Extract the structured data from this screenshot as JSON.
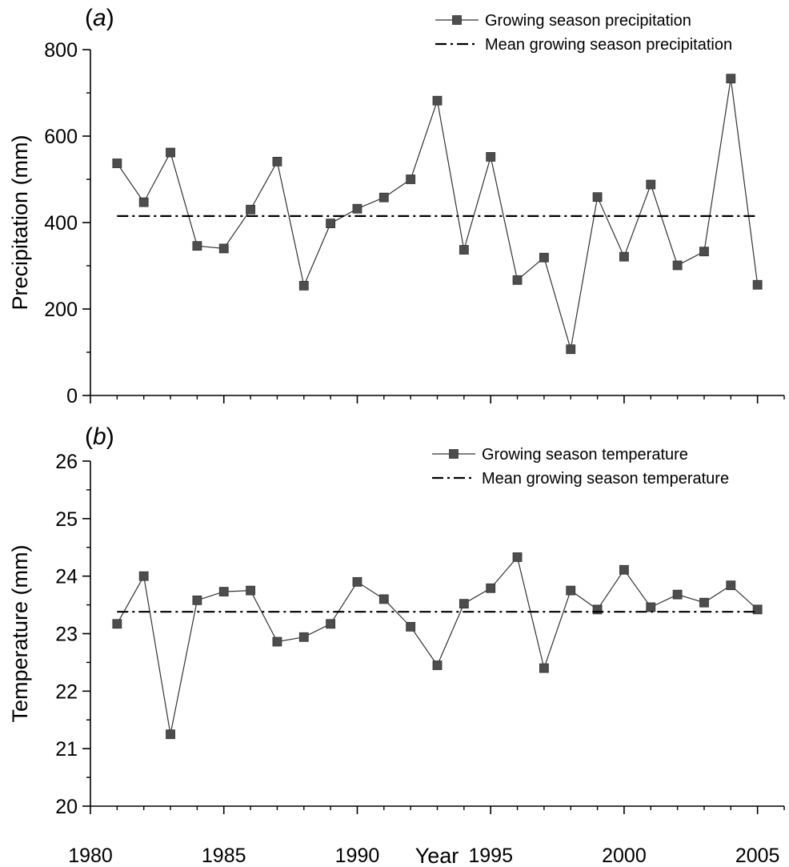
{
  "figure": {
    "xlabel": "Year"
  },
  "chart_data": [
    {
      "type": "line",
      "panel_label": "a",
      "xlabel": "",
      "ylabel": "Precipitation (mm)",
      "xlim": [
        1980,
        2006
      ],
      "ylim": [
        0,
        800
      ],
      "xticks": [
        1980,
        1985,
        1990,
        1995,
        2000,
        2005
      ],
      "yticks": [
        0,
        200,
        400,
        600,
        800
      ],
      "grid": false,
      "legend": "top-right",
      "series": [
        {
          "name": "Growing season precipitation",
          "style": "line-square-markers",
          "color": "#4d4d4d",
          "x": [
            1981,
            1982,
            1983,
            1984,
            1985,
            1986,
            1987,
            1988,
            1989,
            1990,
            1991,
            1992,
            1993,
            1994,
            1995,
            1996,
            1997,
            1998,
            1999,
            2000,
            2001,
            2002,
            2003,
            2004,
            2005
          ],
          "y": [
            537,
            447,
            562,
            346,
            340,
            430,
            541,
            254,
            398,
            432,
            458,
            500,
            682,
            337,
            552,
            267,
            319,
            107,
            459,
            321,
            488,
            301,
            333,
            733,
            256
          ]
        },
        {
          "name": "Mean growing season precipitation",
          "style": "dash-dot",
          "color": "#000000",
          "x": [
            1981,
            2005
          ],
          "y": [
            415,
            415
          ]
        }
      ]
    },
    {
      "type": "line",
      "panel_label": "b",
      "xlabel": "Year",
      "ylabel": "Temperature (mm)",
      "xlim": [
        1980,
        2006
      ],
      "ylim": [
        20,
        26
      ],
      "xticks": [
        1980,
        1985,
        1990,
        1995,
        2000,
        2005
      ],
      "yticks": [
        20,
        21,
        22,
        23,
        24,
        25,
        26
      ],
      "grid": false,
      "legend": "top-right",
      "series": [
        {
          "name": "Growing season temperature",
          "style": "line-square-markers",
          "color": "#4d4d4d",
          "x": [
            1981,
            1982,
            1983,
            1984,
            1985,
            1986,
            1987,
            1988,
            1989,
            1990,
            1991,
            1992,
            1993,
            1994,
            1995,
            1996,
            1997,
            1998,
            1999,
            2000,
            2001,
            2002,
            2003,
            2004,
            2005
          ],
          "y": [
            23.17,
            24.0,
            21.25,
            23.58,
            23.73,
            23.75,
            22.86,
            22.94,
            23.17,
            23.9,
            23.6,
            23.12,
            22.45,
            23.52,
            23.79,
            24.33,
            22.4,
            23.75,
            23.42,
            24.11,
            23.46,
            23.68,
            23.54,
            23.84,
            23.42
          ]
        },
        {
          "name": "Mean growing season temperature",
          "style": "dash-dot",
          "color": "#000000",
          "x": [
            1981,
            2005
          ],
          "y": [
            23.38,
            23.38
          ]
        }
      ]
    }
  ]
}
